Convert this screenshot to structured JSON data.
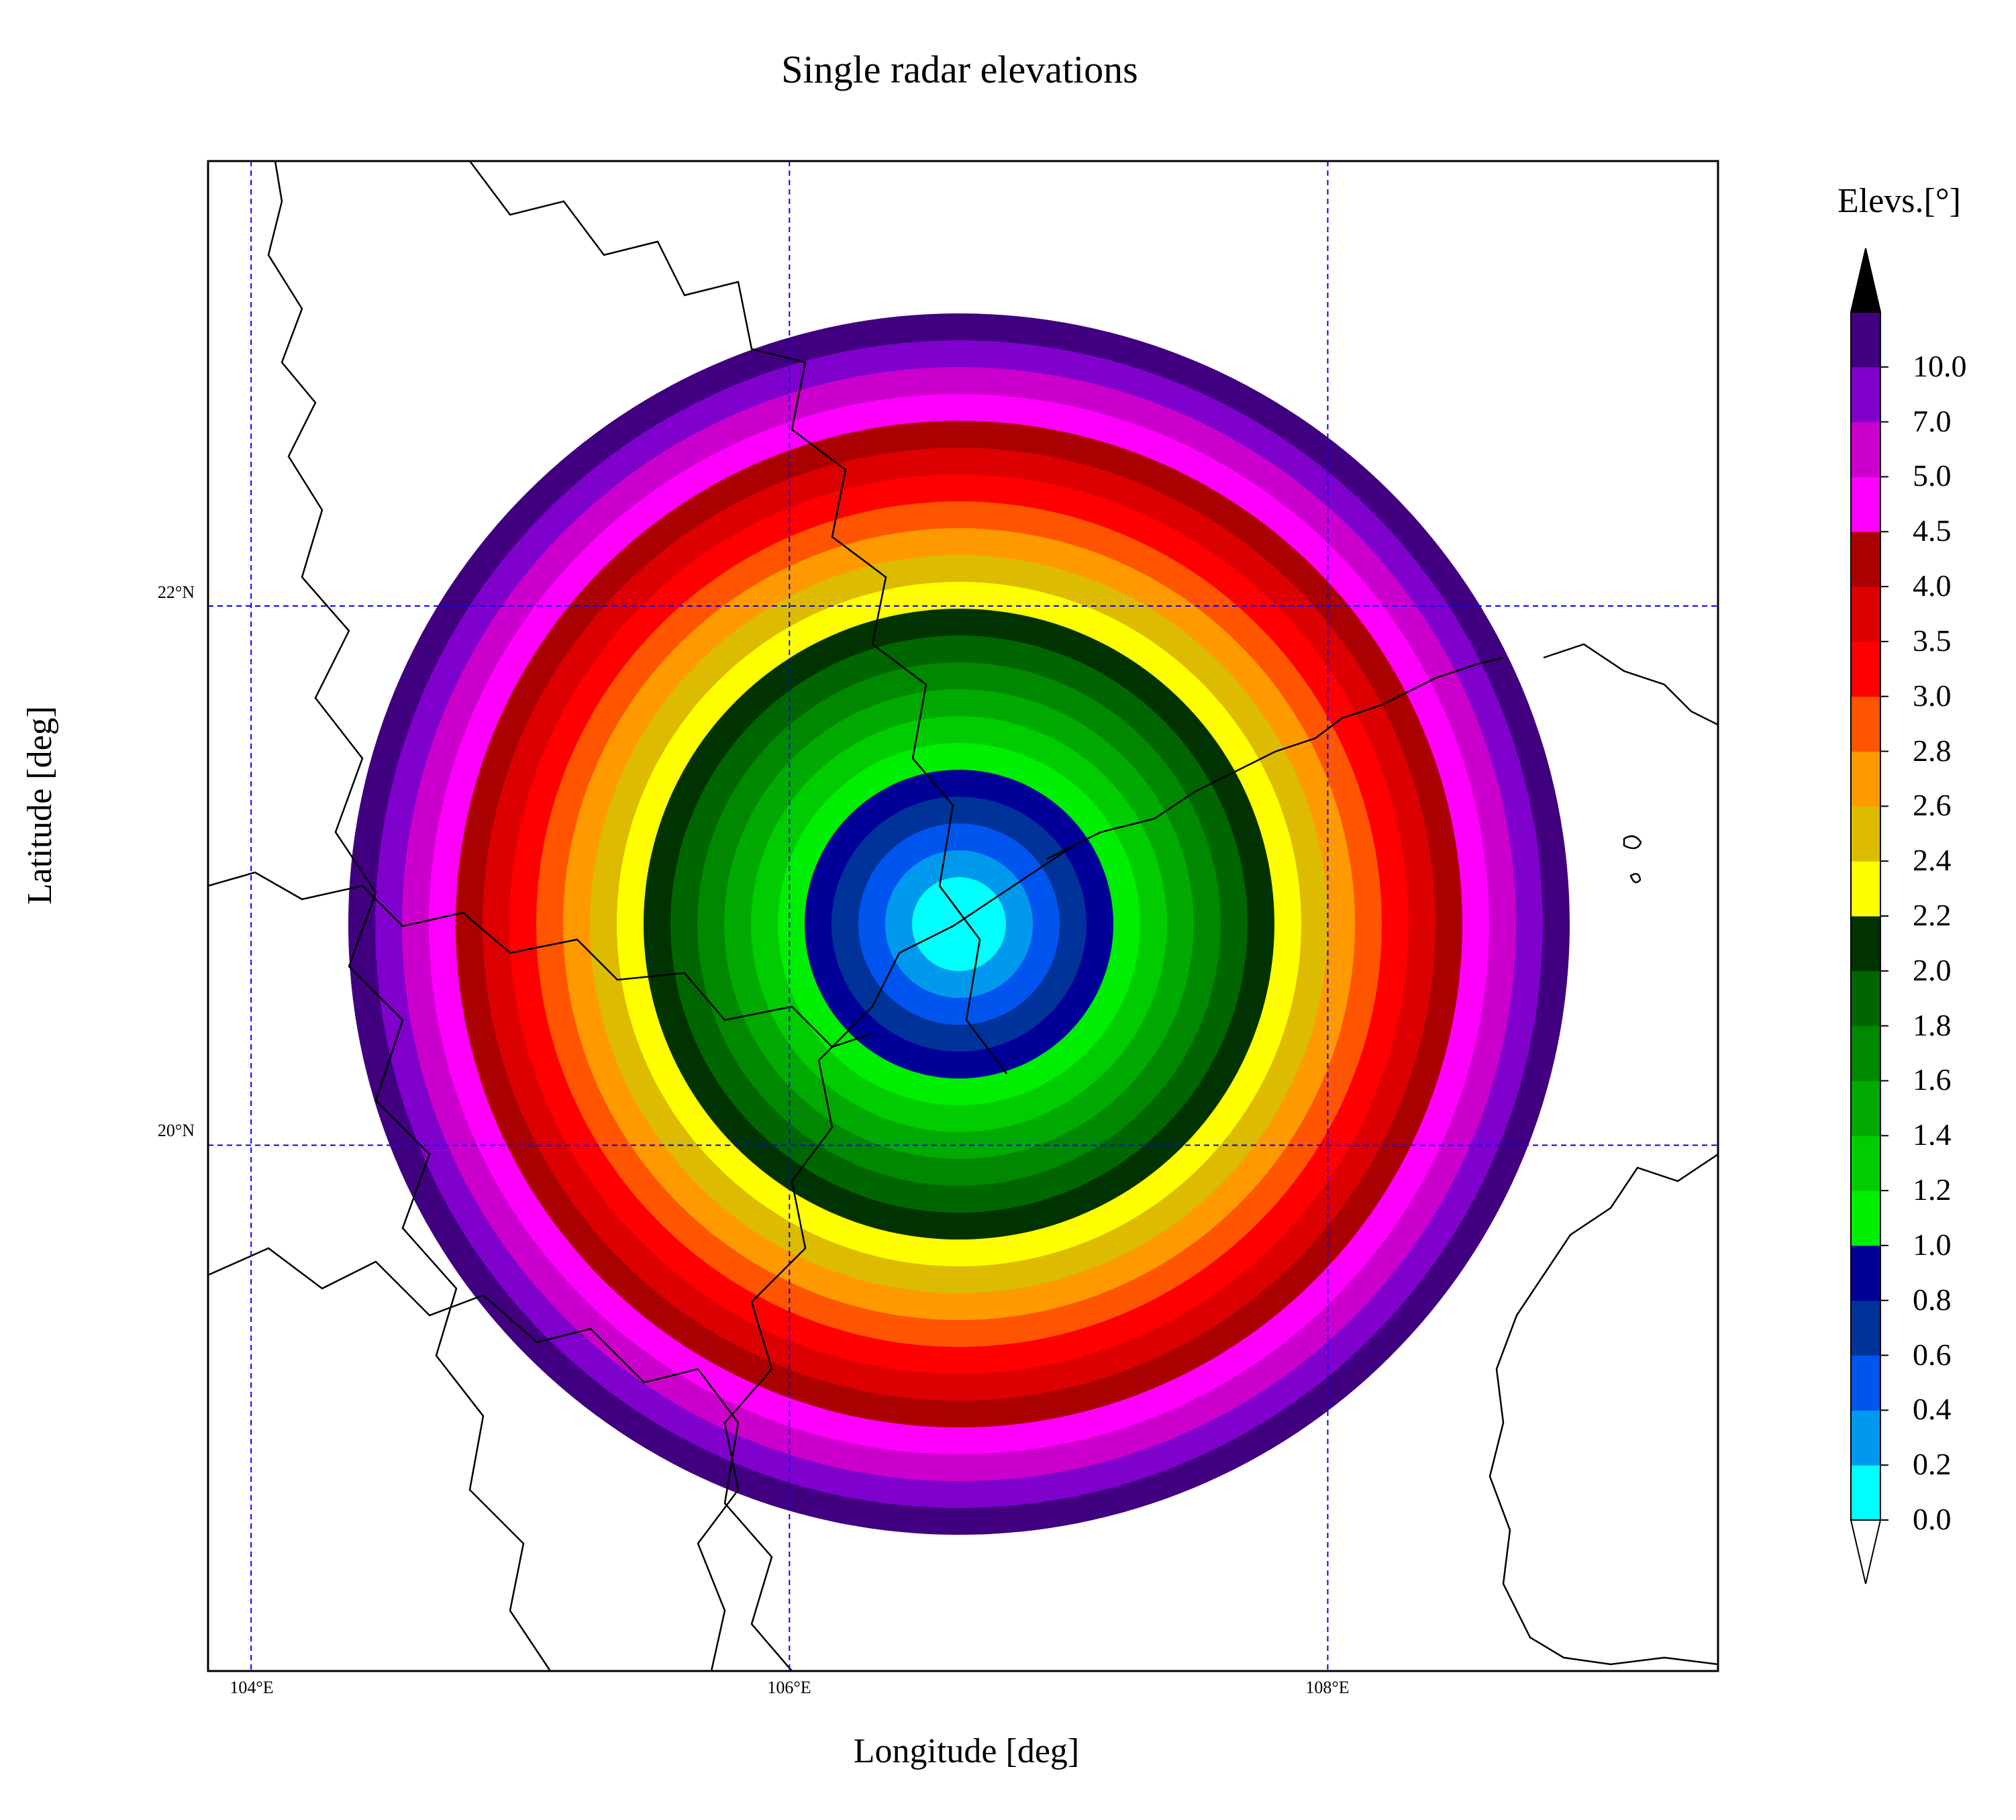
{
  "chart_data": {
    "type": "heatmap",
    "title": "Single radar elevations",
    "xlabel": "Longitude [deg]",
    "ylabel": "Latitude [deg]",
    "xlim": [
      103.84,
      109.45
    ],
    "ylim": [
      18.05,
      23.65
    ],
    "xticks": [
      {
        "value": 104,
        "label": "104°E"
      },
      {
        "value": 106,
        "label": "106°E"
      },
      {
        "value": 108,
        "label": "108°E"
      }
    ],
    "yticks": [
      {
        "value": 22,
        "label": "22°N"
      },
      {
        "value": 20,
        "label": "20°N"
      }
    ],
    "grid": true,
    "radar_center": {
      "lon": 106.63,
      "lat": 20.82
    },
    "colorbar": {
      "title": "Elevs.[°]",
      "extend": "both",
      "levels": [
        0.0,
        0.2,
        0.4,
        0.6,
        0.8,
        1.0,
        1.2,
        1.4,
        1.6,
        1.8,
        2.0,
        2.2,
        2.4,
        2.6,
        2.8,
        3.0,
        3.5,
        4.0,
        4.5,
        5.0,
        7.0,
        10.0
      ],
      "tick_labels": [
        "0.0",
        "0.2",
        "0.4",
        "0.6",
        "0.8",
        "1.0",
        "1.2",
        "1.4",
        "1.6",
        "1.8",
        "2.0",
        "2.2",
        "2.4",
        "2.6",
        "2.8",
        "3.0",
        "3.5",
        "4.0",
        "4.5",
        "5.0",
        "7.0",
        "10.0"
      ],
      "colors": [
        "#00ffff",
        "#0099ee",
        "#0055ee",
        "#003399",
        "#000099",
        "#00ee00",
        "#00cc00",
        "#00aa00",
        "#008800",
        "#006600",
        "#003300",
        "#ffff00",
        "#ddbb00",
        "#ff9900",
        "#ff5500",
        "#ff0000",
        "#dd0000",
        "#aa0000",
        "#ff00ff",
        "#cc00cc",
        "#8000cc",
        "#400080"
      ],
      "under_color": "#ffffff",
      "over_color": "#000000"
    }
  }
}
